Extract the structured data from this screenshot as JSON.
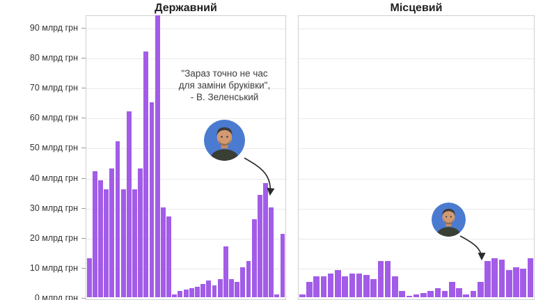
{
  "chart_data": [
    {
      "type": "bar",
      "title": "Державний",
      "unit": "млрд грн",
      "ylim": [
        0,
        94
      ],
      "grid": true,
      "legend": "none",
      "bar_color": "#a25ce8",
      "y_ticks": [
        {
          "value": 0,
          "label": "0 млрд грн"
        },
        {
          "value": 10,
          "label": "10 млрд грн"
        },
        {
          "value": 20,
          "label": "20 млрд грн"
        },
        {
          "value": 30,
          "label": "30 млрд грн"
        },
        {
          "value": 40,
          "label": "40 млрд грн"
        },
        {
          "value": 50,
          "label": "50 млрд грн"
        },
        {
          "value": 60,
          "label": "60 млрд грн"
        },
        {
          "value": 70,
          "label": "70 млрд грн"
        },
        {
          "value": 80,
          "label": "80 млрд грн"
        },
        {
          "value": 90,
          "label": "90 млрд грн"
        }
      ],
      "values": [
        13,
        42,
        39,
        36,
        43,
        52,
        36,
        62,
        36,
        43,
        82,
        65,
        94,
        30,
        27,
        1,
        2,
        2.5,
        3,
        3.5,
        4.5,
        5.5,
        4,
        6,
        17,
        6,
        5,
        10,
        12,
        26,
        34,
        38,
        30,
        1,
        21
      ]
    },
    {
      "type": "bar",
      "title": "Місцевий",
      "unit": "млрд грн",
      "ylim": [
        0,
        94
      ],
      "grid": true,
      "legend": "none",
      "bar_color": "#a25ce8",
      "values": [
        1,
        5,
        7,
        7,
        8,
        9,
        7,
        8,
        8,
        7.5,
        6,
        12,
        12,
        7,
        2,
        0.5,
        1,
        1.5,
        2,
        3,
        2,
        5,
        3,
        1,
        2,
        5,
        12,
        13,
        12.5,
        9,
        10,
        9.5,
        13
      ]
    }
  ],
  "annotation": {
    "line1": "\"Зараз точно не час",
    "line2": "для заміни бруківки\",",
    "line3": "- В. Зеленський",
    "photo": "zelensky-photo"
  },
  "colors": {
    "bar": "#a25ce8",
    "grid": "#e9e9e9",
    "border": "#cfcfcf",
    "text": "#333333",
    "arrow": "#2b2b2b"
  }
}
